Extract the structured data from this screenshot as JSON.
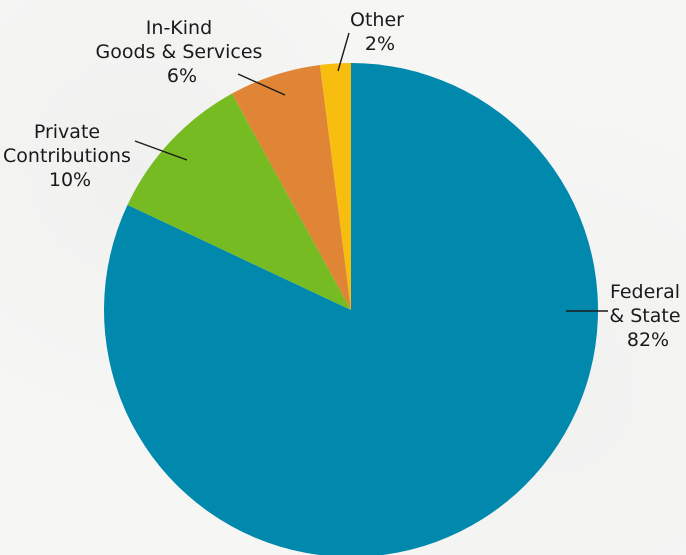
{
  "chart_data": {
    "type": "pie",
    "start_angle_deg": 0,
    "direction": "clockwise",
    "slices": [
      {
        "label_lines": [
          "Federal",
          "& State"
        ],
        "value_label": "82%",
        "value": 82,
        "color": "#0088ad"
      },
      {
        "label_lines": [
          "Private",
          "Contributions"
        ],
        "value_label": "10%",
        "value": 10,
        "color": "#77bb22"
      },
      {
        "label_lines": [
          "In-Kind",
          "Goods & Services"
        ],
        "value_label": "6%",
        "value": 6,
        "color": "#e08536"
      },
      {
        "label_lines": [
          "Other"
        ],
        "value_label": "2%",
        "value": 2,
        "color": "#f7be0f"
      }
    ]
  }
}
